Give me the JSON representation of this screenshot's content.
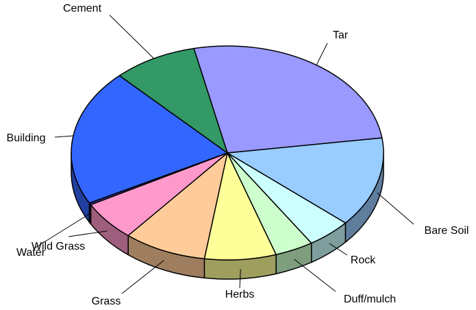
{
  "chart_data": {
    "type": "pie3d",
    "categories": [
      "Tar",
      "Bare Soil",
      "Rock",
      "Duff/mulch",
      "Herbs",
      "Grass",
      "Wild Grass",
      "Water",
      "Building",
      "Cement"
    ],
    "values": [
      26.2,
      13.6,
      4.6,
      4.0,
      7.4,
      8.6,
      6.0,
      0.3,
      20.6,
      8.7
    ],
    "colors": [
      "#9999ff",
      "#99ccff",
      "#ccffff",
      "#ccffcc",
      "#ffff99",
      "#ffcc99",
      "#ff99cc",
      "#333399",
      "#3366ff",
      "#339966"
    ]
  }
}
